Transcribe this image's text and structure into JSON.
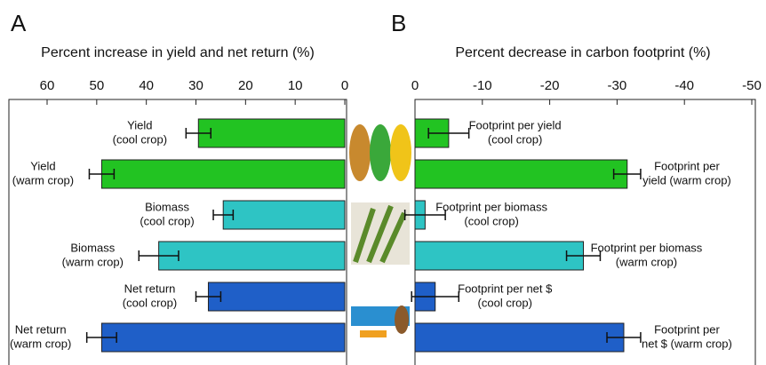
{
  "chart_data": [
    {
      "type": "hbar",
      "panel_label": "A",
      "title": "Percent increase in yield and net return (%)",
      "categories": [
        [
          "Yield",
          "(cool crop)"
        ],
        [
          "Yield",
          "(warm crop)"
        ],
        [
          "Biomass",
          "(cool crop)"
        ],
        [
          "Biomass",
          "(warm crop)"
        ],
        [
          "Net return",
          "(cool crop)"
        ],
        [
          "Net return",
          "(warm crop)"
        ]
      ],
      "values": [
        29.5,
        49,
        24.5,
        37.5,
        27.5,
        49
      ],
      "errors": [
        2.5,
        2.5,
        2,
        4,
        2.5,
        3
      ],
      "colors": [
        "#22c322",
        "#22c322",
        "#2ec4c4",
        "#2ec4c4",
        "#1f5fc8",
        "#1f5fc8"
      ],
      "xlim": [
        60,
        0
      ],
      "xticks": [
        60,
        50,
        40,
        30,
        20,
        10,
        0
      ]
    },
    {
      "type": "hbar",
      "panel_label": "B",
      "title": "Percent decrease in carbon footprint (%)",
      "categories": [
        [
          "Footprint per yield",
          "(cool crop)"
        ],
        [
          "Footprint per",
          "yield (warm crop)"
        ],
        [
          "Footprint per biomass",
          "(cool crop)"
        ],
        [
          "Footprint per biomass",
          "(warm crop)"
        ],
        [
          "Footprint per net $",
          "(cool crop)"
        ],
        [
          "Footprint per",
          "net $ (warm crop)"
        ]
      ],
      "values": [
        -5,
        -31.5,
        -1.5,
        -25,
        -3,
        -31
      ],
      "errors": [
        3,
        2,
        3,
        2.5,
        3.5,
        2.5
      ],
      "colors": [
        "#22c322",
        "#22c322",
        "#2ec4c4",
        "#2ec4c4",
        "#1f5fc8",
        "#1f5fc8"
      ],
      "xlim": [
        0,
        -50
      ],
      "xticks": [
        0,
        -10,
        -20,
        -30,
        -40,
        -50
      ]
    }
  ]
}
